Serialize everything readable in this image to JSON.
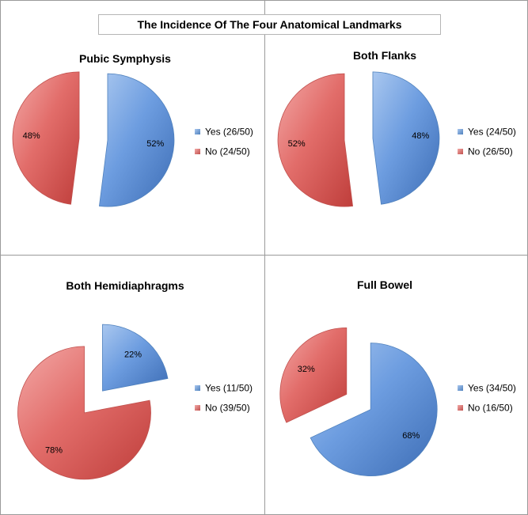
{
  "title": "The Incidence Of The Four Anatomical Landmarks",
  "colors": {
    "yes": "#4F81BD",
    "no": "#C0504D"
  },
  "chart_data": [
    {
      "type": "pie",
      "title": "Pubic Symphysis",
      "labels": [
        "Yes (26/50)",
        "No (24/50)"
      ],
      "values": [
        26,
        24
      ],
      "percent_labels": [
        "52%",
        "48%"
      ],
      "exploded": true,
      "legend": "right"
    },
    {
      "type": "pie",
      "title": "Both Flanks",
      "labels": [
        "Yes (24/50)",
        "No (26/50)"
      ],
      "values": [
        24,
        26
      ],
      "percent_labels": [
        "48%",
        "52%"
      ],
      "exploded": true,
      "legend": "right"
    },
    {
      "type": "pie",
      "title": "Both Hemidiaphragms",
      "labels": [
        "Yes (11/50)",
        "No (39/50)"
      ],
      "values": [
        11,
        39
      ],
      "percent_labels": [
        "22%",
        "78%"
      ],
      "exploded": true,
      "legend": "right"
    },
    {
      "type": "pie",
      "title": "Full Bowel",
      "labels": [
        "Yes (34/50)",
        "No (16/50)"
      ],
      "values": [
        34,
        16
      ],
      "percent_labels": [
        "68%",
        "32%"
      ],
      "exploded": true,
      "legend": "right"
    }
  ]
}
